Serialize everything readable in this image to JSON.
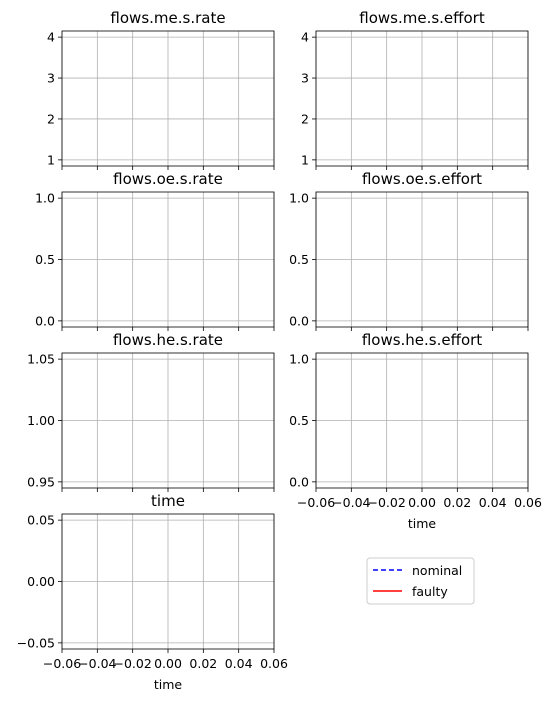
{
  "chart_data": [
    {
      "type": "line",
      "title": "flows.me.s.rate",
      "xlabel": "",
      "ylabel": "",
      "xlim": [
        -0.06,
        0.06
      ],
      "ylim": [
        0.85,
        4.15
      ],
      "yticks": [
        1,
        2,
        3,
        4
      ],
      "ytick_labels": [
        "1",
        "2",
        "3",
        "4"
      ],
      "xticks": [
        -0.06,
        -0.04,
        -0.02,
        0.0,
        0.02,
        0.04,
        0.06
      ],
      "xtick_labels": [],
      "grid": true,
      "series": []
    },
    {
      "type": "line",
      "title": "flows.me.s.effort",
      "xlabel": "",
      "ylabel": "",
      "xlim": [
        -0.06,
        0.06
      ],
      "ylim": [
        0.85,
        4.15
      ],
      "yticks": [
        1,
        2,
        3,
        4
      ],
      "ytick_labels": [
        "1",
        "2",
        "3",
        "4"
      ],
      "xticks": [
        -0.06,
        -0.04,
        -0.02,
        0.0,
        0.02,
        0.04,
        0.06
      ],
      "xtick_labels": [],
      "grid": true,
      "series": []
    },
    {
      "type": "line",
      "title": "flows.oe.s.rate",
      "xlabel": "",
      "ylabel": "",
      "xlim": [
        -0.06,
        0.06
      ],
      "ylim": [
        -0.05,
        1.05
      ],
      "yticks": [
        0,
        0.5,
        1.0
      ],
      "ytick_labels": [
        "0.0",
        "0.5",
        "1.0"
      ],
      "xticks": [
        -0.06,
        -0.04,
        -0.02,
        0.0,
        0.02,
        0.04,
        0.06
      ],
      "xtick_labels": [],
      "grid": true,
      "series": []
    },
    {
      "type": "line",
      "title": "flows.oe.s.effort",
      "xlabel": "",
      "ylabel": "",
      "xlim": [
        -0.06,
        0.06
      ],
      "ylim": [
        -0.05,
        1.05
      ],
      "yticks": [
        0,
        0.5,
        1.0
      ],
      "ytick_labels": [
        "0.0",
        "0.5",
        "1.0"
      ],
      "xticks": [
        -0.06,
        -0.04,
        -0.02,
        0.0,
        0.02,
        0.04,
        0.06
      ],
      "xtick_labels": [],
      "grid": true,
      "series": []
    },
    {
      "type": "line",
      "title": "flows.he.s.rate",
      "xlabel": "",
      "ylabel": "",
      "xlim": [
        -0.06,
        0.06
      ],
      "ylim": [
        0.945,
        1.055
      ],
      "yticks": [
        0.95,
        1.0,
        1.05
      ],
      "ytick_labels": [
        "0.95",
        "1.00",
        "1.05"
      ],
      "xticks": [
        -0.06,
        -0.04,
        -0.02,
        0.0,
        0.02,
        0.04,
        0.06
      ],
      "xtick_labels": [],
      "grid": true,
      "series": []
    },
    {
      "type": "line",
      "title": "flows.he.s.effort",
      "xlabel": "time",
      "ylabel": "",
      "xlim": [
        -0.06,
        0.06
      ],
      "ylim": [
        -0.05,
        1.05
      ],
      "yticks": [
        0,
        0.5,
        1.0
      ],
      "ytick_labels": [
        "0.0",
        "0.5",
        "1.0"
      ],
      "xticks": [
        -0.06,
        -0.04,
        -0.02,
        0.0,
        0.02,
        0.04,
        0.06
      ],
      "xtick_labels": [
        "−0.06",
        "−0.04",
        "−0.02",
        "0.00",
        "0.02",
        "0.04",
        "0.06"
      ],
      "grid": true,
      "series": []
    },
    {
      "type": "line",
      "title": "time",
      "xlabel": "time",
      "ylabel": "",
      "xlim": [
        -0.06,
        0.06
      ],
      "ylim": [
        -0.055,
        0.055
      ],
      "yticks": [
        -0.05,
        0.0,
        0.05
      ],
      "ytick_labels": [
        "−0.05",
        "0.00",
        "0.05"
      ],
      "xticks": [
        -0.06,
        -0.04,
        -0.02,
        0.0,
        0.02,
        0.04,
        0.06
      ],
      "xtick_labels": [
        "−0.06",
        "−0.04",
        "−0.02",
        "0.00",
        "0.02",
        "0.04",
        "0.06"
      ],
      "grid": true,
      "series": []
    }
  ],
  "legend": {
    "placement": "bottom-right",
    "entries": [
      {
        "label": "nominal",
        "color": "#0000ff",
        "linestyle": "dashed"
      },
      {
        "label": "faulty",
        "color": "#ff0000",
        "linestyle": "solid"
      }
    ]
  }
}
